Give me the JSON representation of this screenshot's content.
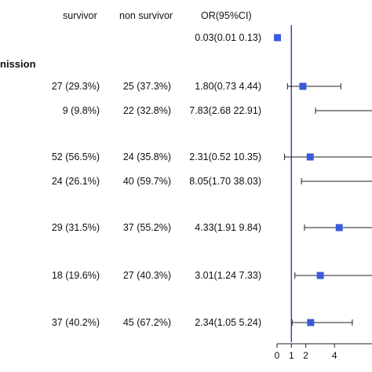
{
  "chart_data": {
    "type": "forest",
    "columns": {
      "survivor": "survivor",
      "non_survivor": "non survivor",
      "or": "OR(95%CI)"
    },
    "section_label": "nission",
    "rows": [
      {
        "survivor": "",
        "non_survivor": "",
        "or_text": "0.03(0.01 0.13)",
        "or": 0.03,
        "lo": 0.01,
        "hi": 0.13
      },
      {
        "survivor": "27 (29.3%)",
        "non_survivor": "25 (37.3%)",
        "or_text": "1.80(0.73 4.44)",
        "or": 1.8,
        "lo": 0.73,
        "hi": 4.44
      },
      {
        "survivor": "9 (9.8%)",
        "non_survivor": "22 (32.8%)",
        "or_text": "7.83(2.68 22.91)",
        "or": 7.83,
        "lo": 2.68,
        "hi": 22.91
      },
      {
        "survivor": "52 (56.5%)",
        "non_survivor": "24 (35.8%)",
        "or_text": "2.31(0.52 10.35)",
        "or": 2.31,
        "lo": 0.52,
        "hi": 10.35
      },
      {
        "survivor": "24 (26.1%)",
        "non_survivor": "40 (59.7%)",
        "or_text": "8.05(1.70 38.03)",
        "or": 8.05,
        "lo": 1.7,
        "hi": 38.03
      },
      {
        "survivor": "29 (31.5%)",
        "non_survivor": "37 (55.2%)",
        "or_text": "4.33(1.91 9.84)",
        "or": 4.33,
        "lo": 1.91,
        "hi": 9.84
      },
      {
        "survivor": "18 (19.6%)",
        "non_survivor": "27 (40.3%)",
        "or_text": "3.01(1.24 7.33)",
        "or": 3.01,
        "lo": 1.24,
        "hi": 7.33
      },
      {
        "survivor": "37 (40.2%)",
        "non_survivor": "45 (67.2%)",
        "or_text": "2.34(1.05 5.24)",
        "or": 2.34,
        "lo": 1.05,
        "hi": 5.24
      }
    ],
    "x_ticks": [
      0,
      1,
      2,
      4
    ],
    "x_tick_labels": [
      "0",
      "1",
      "2",
      "4"
    ],
    "reference_line": 1,
    "marker_color": "#3b5bdb",
    "reference_color": "#3a3aa8"
  }
}
